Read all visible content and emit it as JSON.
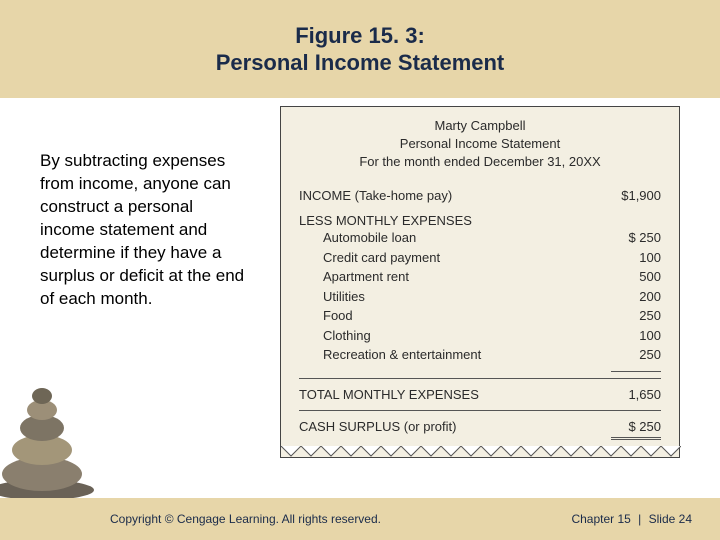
{
  "title_line1": "Figure 15. 3:",
  "title_line2": "Personal Income Statement",
  "explain_text": "By subtracting expenses from income, anyone can construct a personal income statement and determine if they have a surplus or deficit at the end of each month.",
  "receipt": {
    "name": "Marty Campbell",
    "subtitle": "Personal Income Statement",
    "period": "For the month ended December 31, 20XX",
    "income_label": "INCOME (Take-home pay)",
    "income_value": "$1,900",
    "expenses_head": "LESS MONTHLY EXPENSES",
    "expenses": [
      {
        "label": "Automobile loan",
        "value": "$   250"
      },
      {
        "label": "Credit card payment",
        "value": "100"
      },
      {
        "label": "Apartment rent",
        "value": "500"
      },
      {
        "label": "Utilities",
        "value": "200"
      },
      {
        "label": "Food",
        "value": "250"
      },
      {
        "label": "Clothing",
        "value": "100"
      },
      {
        "label": "Recreation & entertainment",
        "value": "250"
      }
    ],
    "total_label": "TOTAL MONTHLY EXPENSES",
    "total_value": "1,650",
    "surplus_label": "CASH SURPLUS (or profit)",
    "surplus_value": "$     250"
  },
  "footer": {
    "copyright": "Copyright © Cengage Learning. All rights reserved.",
    "chapter": "Chapter 15",
    "slide": "Slide 24"
  },
  "colors": {
    "band": "#e7d6a9",
    "title_text": "#1a2b4a",
    "receipt_bg": "#f3efe2"
  }
}
